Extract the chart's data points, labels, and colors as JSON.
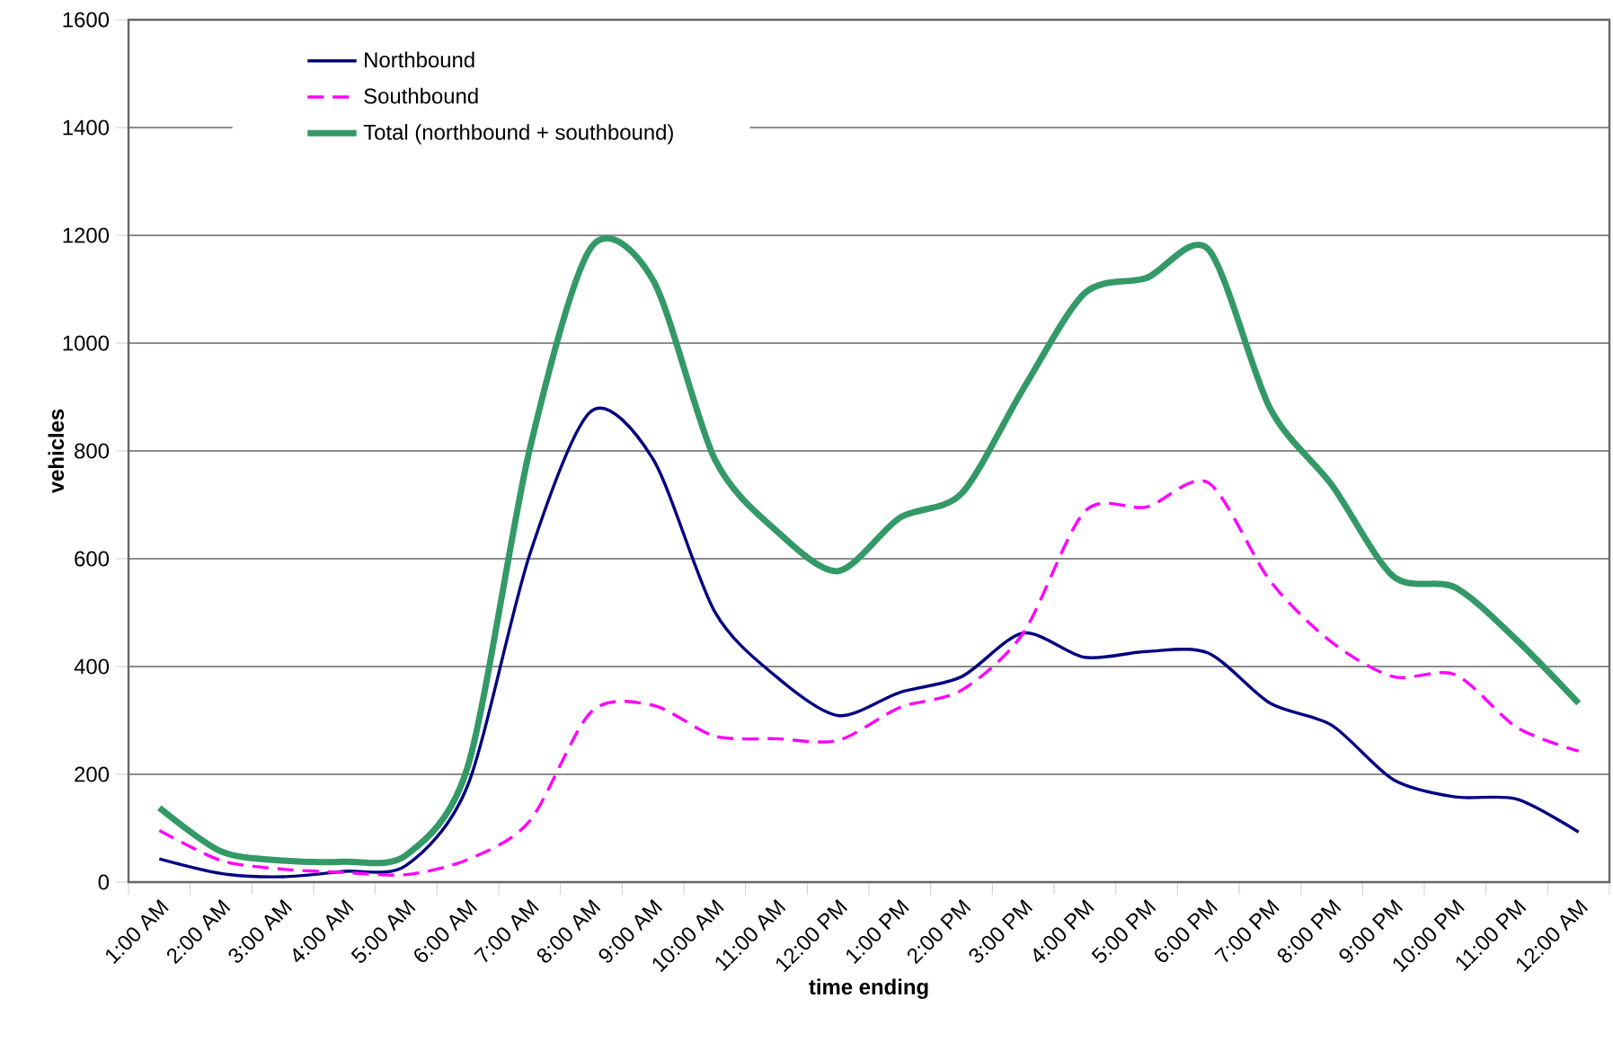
{
  "chart_data": {
    "type": "line",
    "xlabel": "time ending",
    "ylabel": "vehicles",
    "categories": [
      "1:00 AM",
      "2:00 AM",
      "3:00 AM",
      "4:00 AM",
      "5:00 AM",
      "6:00 AM",
      "7:00 AM",
      "8:00 AM",
      "9:00 AM",
      "10:00 AM",
      "11:00 AM",
      "12:00 PM",
      "1:00 PM",
      "2:00 PM",
      "3:00 PM",
      "4:00 PM",
      "5:00 PM",
      "6:00 PM",
      "7:00 PM",
      "8:00 PM",
      "9:00 PM",
      "10:00 PM",
      "11:00 PM",
      "12:00 AM"
    ],
    "series": [
      {
        "name": "Northbound",
        "color": "#000080",
        "line_style": "solid",
        "values": [
          43,
          16,
          10,
          20,
          31,
          180,
          607,
          874,
          785,
          502,
          381,
          309,
          352,
          381,
          462,
          417,
          428,
          425,
          332,
          291,
          190,
          158,
          154,
          93
        ]
      },
      {
        "name": "Southbound",
        "color": "#ff00ff",
        "line_style": "dashed",
        "values": [
          96,
          40,
          24,
          18,
          14,
          42,
          113,
          316,
          328,
          271,
          266,
          263,
          324,
          356,
          462,
          688,
          696,
          741,
          559,
          445,
          381,
          385,
          287,
          243
        ]
      },
      {
        "name": "Total (northbound + southbound)",
        "color": "#339966",
        "line_style": "solid",
        "values": [
          138,
          57,
          40,
          38,
          50,
          215,
          802,
          1178,
          1117,
          785,
          652,
          577,
          676,
          721,
          915,
          1093,
          1121,
          1174,
          879,
          737,
          567,
          547,
          449,
          332
        ]
      }
    ],
    "ylim": [
      0,
      1600
    ],
    "yticks": [
      0,
      200,
      400,
      600,
      800,
      1000,
      1200,
      1400,
      1600
    ],
    "grid": "y",
    "legend": "top left",
    "marker": "none"
  }
}
